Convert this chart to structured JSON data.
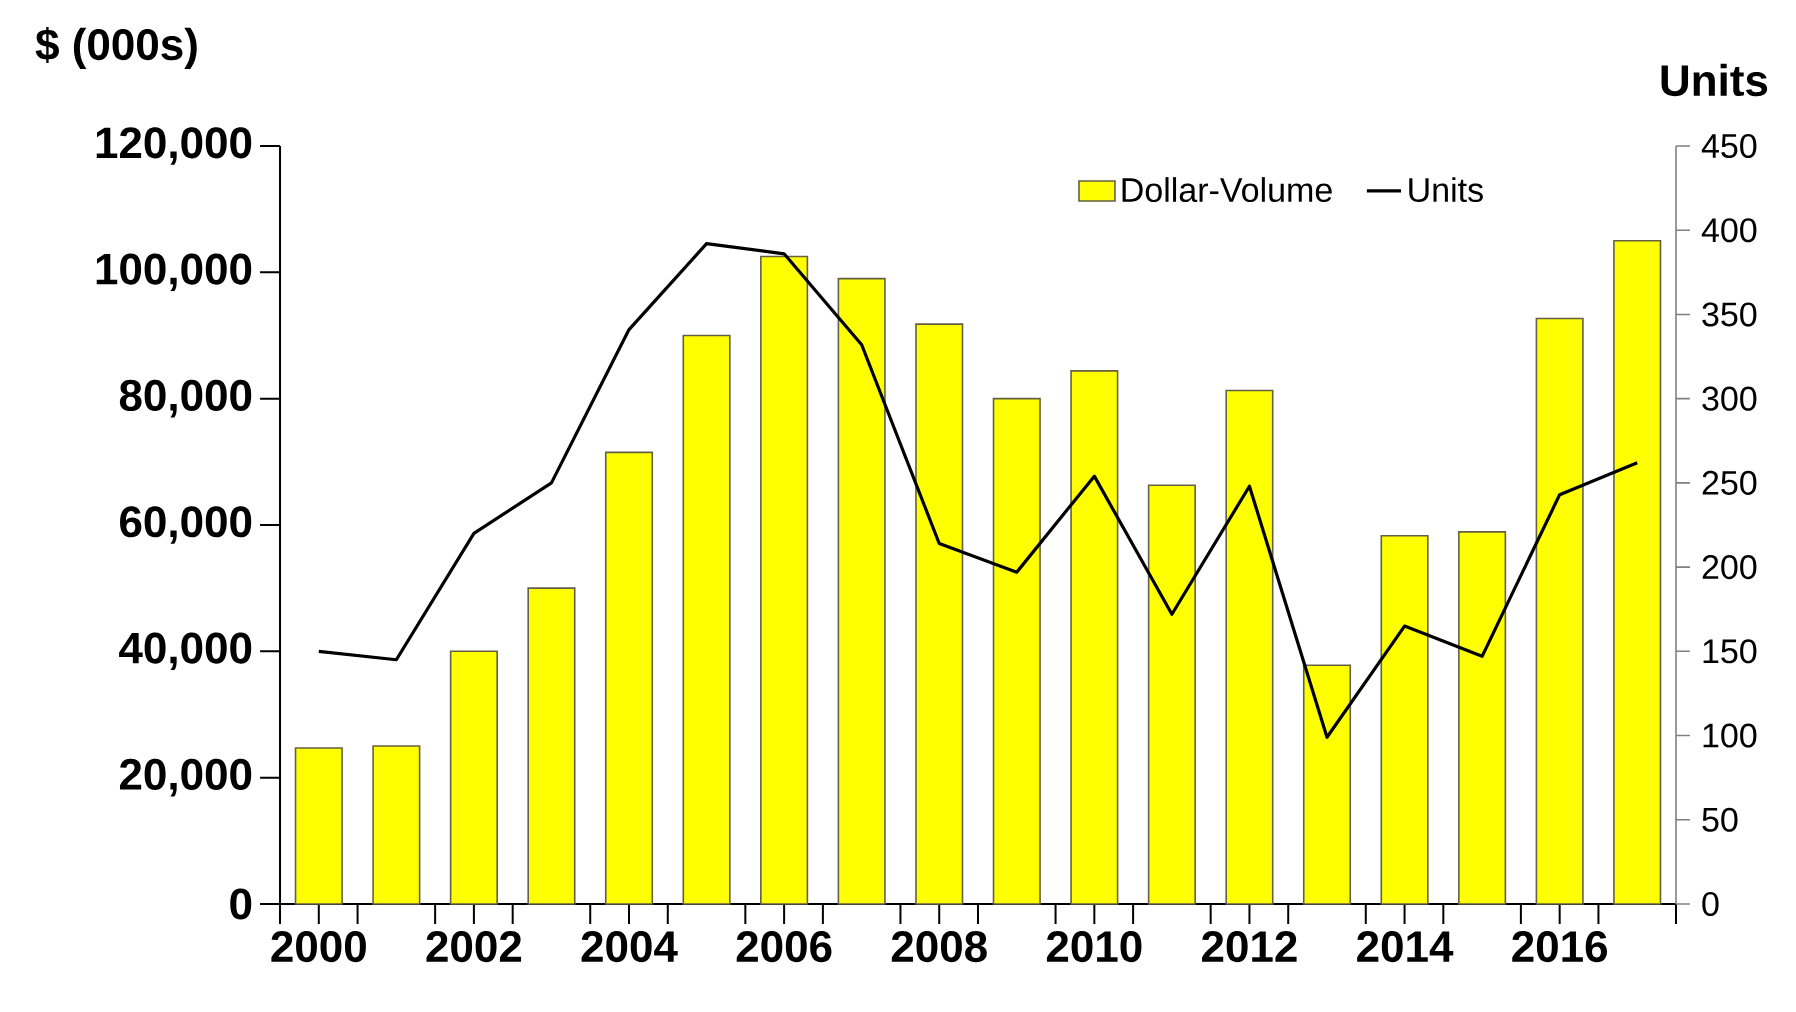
{
  "chart_data": {
    "type": "bar",
    "ylabel": "$ (000s)",
    "y2label": "Units",
    "x": [
      2000,
      2001,
      2002,
      2003,
      2004,
      2005,
      2006,
      2007,
      2008,
      2009,
      2010,
      2011,
      2012,
      2013,
      2014,
      2015,
      2016,
      2017
    ],
    "series": [
      {
        "name": "Dollar-Volume",
        "color": "#ffff00",
        "values": [
          24700,
          25000,
          40000,
          50000,
          71500,
          90000,
          102500,
          99000,
          91800,
          80000,
          84400,
          66300,
          81300,
          37800,
          58300,
          58900,
          92700,
          105000
        ]
      },
      {
        "name": "Units",
        "type": "line",
        "axis": "y2",
        "color": "#000000",
        "values": [
          150,
          145,
          220,
          250,
          341,
          392,
          386,
          332,
          214,
          197,
          254,
          172,
          248,
          99,
          165,
          147,
          243,
          262
        ]
      }
    ],
    "xlim": [
      1999.5,
      2017.5
    ],
    "xticks": [
      2000,
      2002,
      2004,
      2006,
      2008,
      2010,
      2012,
      2014,
      2016
    ],
    "ylim": [
      0,
      120000
    ],
    "yticks": [
      {
        "value": 0,
        "label": "0"
      },
      {
        "value": 20000,
        "label": "20,000"
      },
      {
        "value": 40000,
        "label": "40,000"
      },
      {
        "value": 60000,
        "label": "60,000"
      },
      {
        "value": 80000,
        "label": "80,000"
      },
      {
        "value": 100000,
        "label": "100,000"
      },
      {
        "value": 120000,
        "label": "120,000"
      }
    ],
    "y2lim": [
      0,
      450
    ],
    "y2ticks": [
      0,
      50,
      100,
      150,
      200,
      250,
      300,
      350,
      400,
      450
    ],
    "grid": false,
    "legend": "top right",
    "marker": "none",
    "line_style": "solid"
  }
}
